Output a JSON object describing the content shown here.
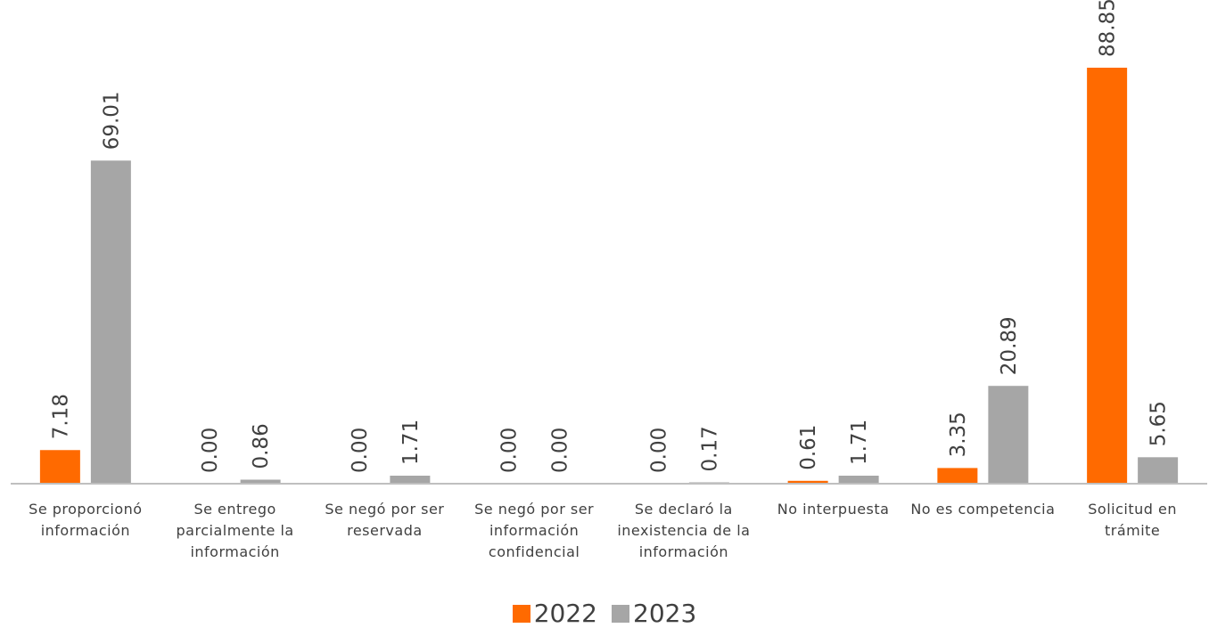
{
  "chart_data": {
    "type": "bar",
    "categories": [
      "Se proporcionó información",
      "Se entrego parcialmente la información",
      "Se negó por ser reservada",
      "Se negó por ser información confidencial",
      "Se declaró la inexistencia de la información",
      "No interpuesta",
      "No es competencia",
      "Solicitud en trámite"
    ],
    "series": [
      {
        "name": "2022",
        "color": "#ff6a00",
        "values": [
          7.18,
          0.0,
          0.0,
          0.0,
          0.0,
          0.61,
          3.35,
          88.85
        ]
      },
      {
        "name": "2023",
        "color": "#a6a6a6",
        "values": [
          69.01,
          0.86,
          1.71,
          0.0,
          0.17,
          1.71,
          20.89,
          5.65
        ]
      }
    ],
    "value_labels": [
      [
        "7.18",
        "0.00",
        "0.00",
        "0.00",
        "0.00",
        "0.61",
        "3.35",
        "88.85"
      ],
      [
        "69.01",
        "0.86",
        "1.71",
        "0.00",
        "0.17",
        "1.71",
        "20.89",
        "5.65"
      ]
    ],
    "ylim": [
      0,
      88.85
    ],
    "grid": false,
    "legend_position": "bottom-center",
    "axis_color": "#bfbfbf"
  }
}
